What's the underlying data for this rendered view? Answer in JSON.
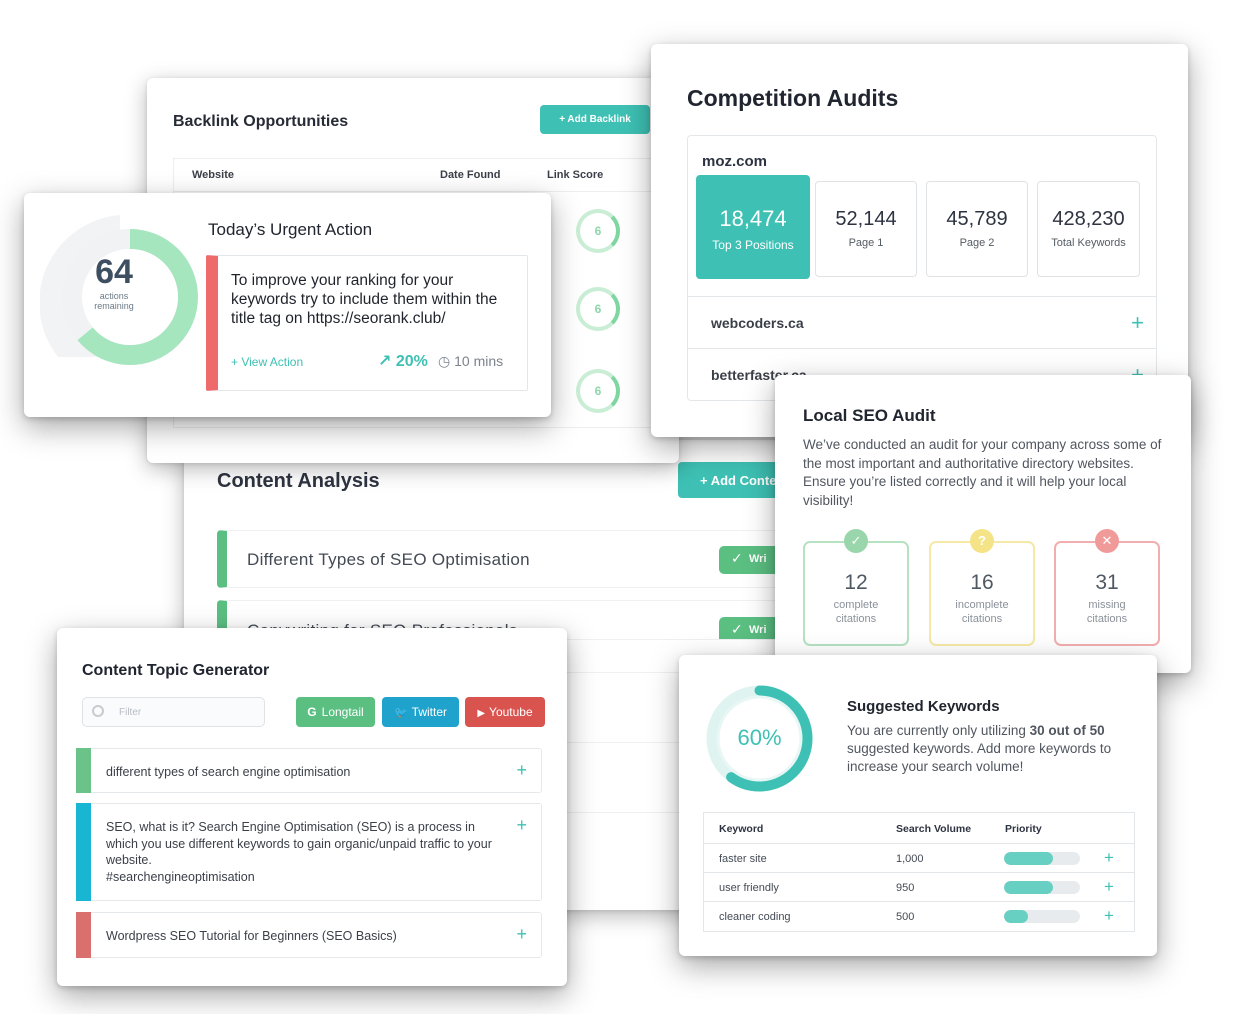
{
  "content_analysis": {
    "title": "Content Analysis",
    "add_label": "+ Add Conte",
    "rows": [
      {
        "text": "Different Types of SEO Optimisation",
        "status": "Wri"
      },
      {
        "text": "Copywriting for SEO Professionals",
        "status": "Wri"
      }
    ]
  },
  "backlinks": {
    "title": "Backlink Opportunities",
    "add_label": "+ Add Backlink",
    "columns": [
      "Website",
      "Date Found",
      "Link Score"
    ],
    "scores": [
      "6",
      "6",
      "6"
    ]
  },
  "competition": {
    "title": "Competition Audits",
    "domain": "moz.com",
    "stats": [
      {
        "value": "18,474",
        "label": "Top 3 Positions"
      },
      {
        "value": "52,144",
        "label": "Page 1"
      },
      {
        "value": "45,789",
        "label": "Page 2"
      },
      {
        "value": "428,230",
        "label": "Total Keywords"
      }
    ],
    "competitors": [
      "webcoders.ca",
      "betterfaster.ca"
    ],
    "plus": "+"
  },
  "urgent": {
    "title": "Today’s Urgent Action",
    "count": "64",
    "count_label_1": "actions",
    "count_label_2": "remaining",
    "progress": 0.64,
    "text": "To improve your ranking for your keywords try to include them within the title tag on https://seorank.club/",
    "view_label": "+ View Action",
    "impact": "↗ 20%",
    "duration": "◷ 10 mins"
  },
  "local_seo": {
    "title": "Local SEO Audit",
    "description": "We’ve conducted an audit for your company across some of the most important and authoritative directory websites. Ensure you’re listed correctly and it will help your local visibility!",
    "citations": [
      {
        "count": "12",
        "label_1": "complete",
        "label_2": "citations",
        "icon": "✓"
      },
      {
        "count": "16",
        "label_1": "incomplete",
        "label_2": "citations",
        "icon": "?"
      },
      {
        "count": "31",
        "label_1": "missing",
        "label_2": "citations",
        "icon": "✕"
      }
    ]
  },
  "topic_generator": {
    "title": "Content Topic Generator",
    "filter_placeholder": "Filter",
    "buttons": [
      {
        "label": "Longtail",
        "icon": "G",
        "color": "#5bbf82"
      },
      {
        "label": "Twitter",
        "icon": "🐦",
        "color": "#1fa3cc"
      },
      {
        "label": "Youtube",
        "icon": "▶",
        "color": "#d9534f"
      }
    ],
    "topics": [
      {
        "text": "different types of search engine optimisation",
        "color": "#6cc389"
      },
      {
        "text": "SEO, what is it? Search Engine Optimisation (SEO) is a process in which you use different keywords to gain organic/unpaid traffic to your website.\n#searchengineoptimisation",
        "color": "#19b6d4"
      },
      {
        "text": "Wordpress SEO Tutorial for Beginners (SEO Basics)",
        "color": "#d9706e"
      }
    ]
  },
  "keywords": {
    "title": "Suggested Keywords",
    "percent_label": "60%",
    "percent": 0.6,
    "desc_before": "You are currently only utilizing ",
    "desc_bold": "30 out of 50",
    "desc_after": " suggested keywords. Add more keywords to increase your search volume!",
    "columns": [
      "Keyword",
      "Search Volume",
      "Priority"
    ],
    "rows": [
      {
        "keyword": "faster site",
        "volume": "1,000",
        "priority": 0.65
      },
      {
        "keyword": "user friendly",
        "volume": "950",
        "priority": 0.65
      },
      {
        "keyword": "cleaner coding",
        "volume": "500",
        "priority": 0.32
      }
    ]
  },
  "colors": {
    "accent": "#3ec1b4",
    "green": "#5bbf82",
    "red": "#ef6a6b"
  }
}
